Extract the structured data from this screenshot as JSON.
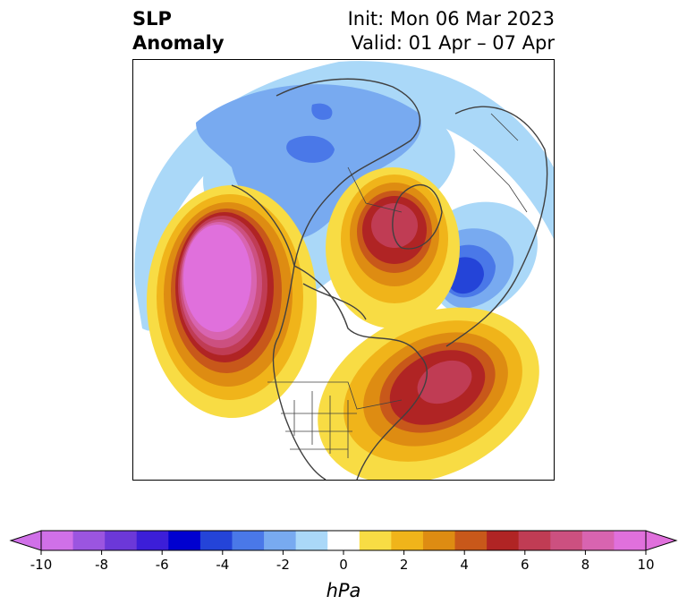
{
  "header": {
    "title_line1": "SLP",
    "title_line2": "Anomaly",
    "init_text": "Init: Mon 06 Mar 2023",
    "valid_text": "Valid: 01 Apr – 07 Apr"
  },
  "colorbar": {
    "unit": "hPa",
    "ticks": [
      "-10",
      "-8",
      "-6",
      "-4",
      "-2",
      "0",
      "2",
      "4",
      "6",
      "8",
      "10"
    ],
    "levels": [
      -10,
      -9,
      -8,
      -7,
      -6,
      -5,
      -4,
      -3,
      -2,
      -1,
      1,
      2,
      3,
      4,
      5,
      6,
      7,
      8,
      9,
      10
    ],
    "colors": [
      "#d070e8",
      "#9b55e0",
      "#6c38d8",
      "#3c1ed8",
      "#0000d0",
      "#2444d8",
      "#4a78e8",
      "#78aaf0",
      "#aad8f8",
      "#ffffff",
      "#f8dc44",
      "#f0b41a",
      "#de8c12",
      "#c8581a",
      "#b02424",
      "#c03c54",
      "#cc5080",
      "#d864b0",
      "#e070dc"
    ],
    "extend_low_color": "#d070e8",
    "extend_high_color": "#e070dc"
  },
  "map": {
    "projection": "north polar stereographic",
    "region": "Northern Hemisphere",
    "features": {
      "pacific_high_peak": "> 10",
      "atlantic_high_peak": "> 6",
      "arctic_high_peak": "> 6",
      "siberia_low_peak": "< -6",
      "canada_low_peak": "< -4"
    }
  }
}
